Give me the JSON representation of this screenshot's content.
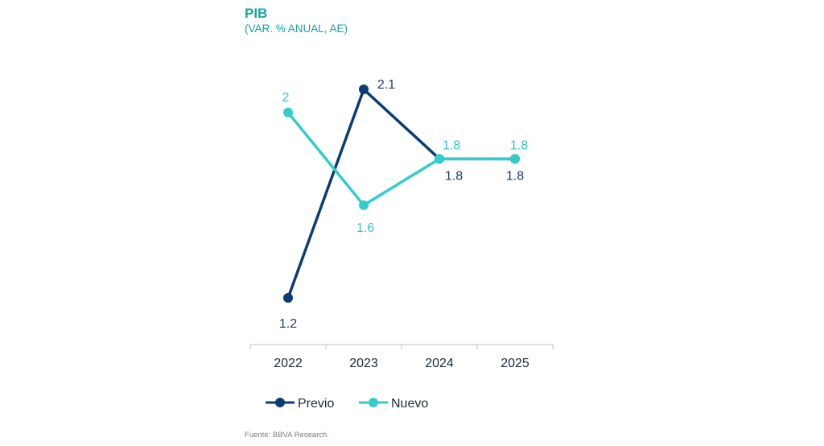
{
  "chart_data": {
    "type": "line",
    "title": "PIB",
    "subtitle": "(VAR. % ANUAL, AE)",
    "categories": [
      "2022",
      "2023",
      "2024",
      "2025"
    ],
    "series": [
      {
        "name": "Previo",
        "color": "#0a3d73",
        "values": [
          1.2,
          2.1,
          1.8,
          1.8
        ],
        "labels": [
          "1.2",
          "2.1",
          "1.8",
          "1.8"
        ]
      },
      {
        "name": "Nuevo",
        "color": "#33cccc",
        "values": [
          2.0,
          1.6,
          1.8,
          1.8
        ],
        "labels": [
          "2",
          "1.6",
          "1.8",
          "1.8"
        ]
      }
    ],
    "ylim": [
      1.1,
      2.2
    ],
    "grid": false,
    "legend_position": "bottom-left"
  },
  "source": "Fuente: BBVA Research."
}
